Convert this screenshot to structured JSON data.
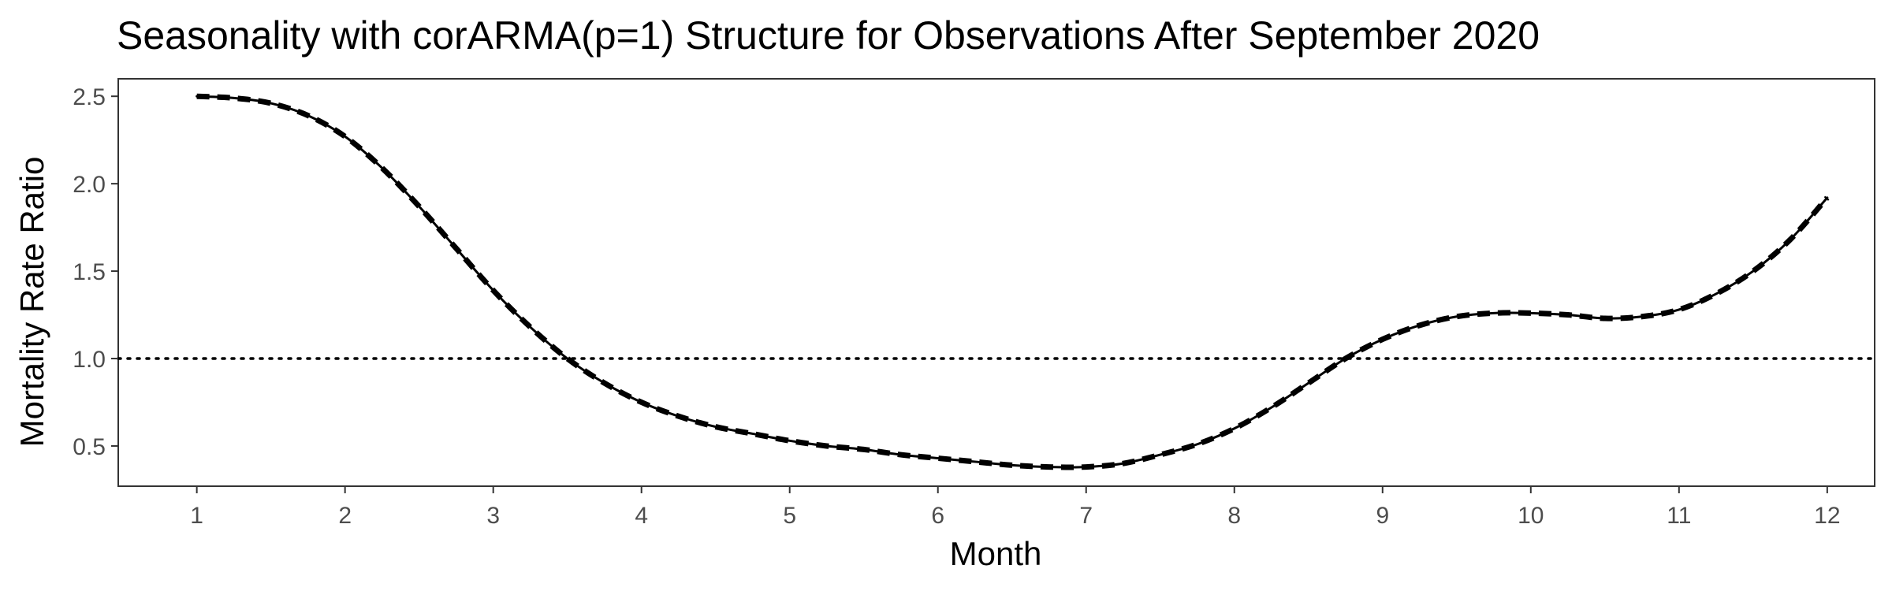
{
  "chart_data": {
    "type": "line",
    "title": "Seasonality with corARMA(p=1) Structure for Observations After September 2020",
    "xlabel": "Month",
    "ylabel": "Mortality Rate Ratio",
    "xlim": [
      0.47,
      12.32
    ],
    "ylim": [
      0.27,
      2.6
    ],
    "x_ticks": [
      1,
      2,
      3,
      4,
      5,
      6,
      7,
      8,
      9,
      10,
      11,
      12
    ],
    "y_ticks": [
      0.5,
      1.0,
      1.5,
      2.0,
      2.5
    ],
    "y_tick_labels": [
      "0.5",
      "1.0",
      "1.5",
      "2.0",
      "2.5"
    ],
    "grid": false,
    "legend": "none",
    "reference_line": {
      "y": 1.0,
      "style": "dotted"
    },
    "series": [
      {
        "style": "solid",
        "x": [
          1,
          1.25,
          1.5,
          1.75,
          2,
          2.25,
          2.5,
          2.75,
          3,
          3.25,
          3.5,
          3.75,
          4,
          4.25,
          4.5,
          4.75,
          5,
          5.25,
          5.5,
          5.75,
          6,
          6.25,
          6.5,
          6.75,
          7,
          7.25,
          7.5,
          7.75,
          8,
          8.25,
          8.5,
          8.75,
          9,
          9.25,
          9.5,
          9.75,
          10,
          10.25,
          10.5,
          10.75,
          11,
          11.25,
          11.5,
          11.75,
          12
        ],
        "y": [
          2.5,
          2.49,
          2.46,
          2.39,
          2.27,
          2.09,
          1.87,
          1.63,
          1.39,
          1.18,
          1.0,
          0.86,
          0.75,
          0.67,
          0.61,
          0.57,
          0.53,
          0.5,
          0.48,
          0.45,
          0.43,
          0.41,
          0.39,
          0.38,
          0.38,
          0.4,
          0.45,
          0.51,
          0.6,
          0.72,
          0.86,
          1.0,
          1.11,
          1.19,
          1.24,
          1.26,
          1.26,
          1.25,
          1.23,
          1.24,
          1.28,
          1.37,
          1.5,
          1.68,
          1.92
        ]
      },
      {
        "style": "dashed",
        "x": [
          1,
          1.25,
          1.5,
          1.75,
          2,
          2.25,
          2.5,
          2.75,
          3,
          3.25,
          3.5,
          3.75,
          4,
          4.25,
          4.5,
          4.75,
          5,
          5.25,
          5.5,
          5.75,
          6,
          6.25,
          6.5,
          6.75,
          7,
          7.25,
          7.5,
          7.75,
          8,
          8.25,
          8.5,
          8.75,
          9,
          9.25,
          9.5,
          9.75,
          10,
          10.25,
          10.5,
          10.75,
          11,
          11.25,
          11.5,
          11.75,
          12
        ],
        "y": [
          2.5,
          2.49,
          2.46,
          2.39,
          2.27,
          2.09,
          1.87,
          1.63,
          1.39,
          1.18,
          1.0,
          0.86,
          0.75,
          0.67,
          0.61,
          0.57,
          0.53,
          0.5,
          0.48,
          0.45,
          0.43,
          0.41,
          0.39,
          0.38,
          0.38,
          0.4,
          0.45,
          0.51,
          0.6,
          0.72,
          0.86,
          1.0,
          1.11,
          1.19,
          1.24,
          1.26,
          1.26,
          1.25,
          1.23,
          1.24,
          1.28,
          1.37,
          1.5,
          1.68,
          1.92
        ]
      }
    ],
    "colors": {
      "line": "#000000",
      "tick_text": "#4d4d4d",
      "panel_border": "#333333"
    }
  }
}
